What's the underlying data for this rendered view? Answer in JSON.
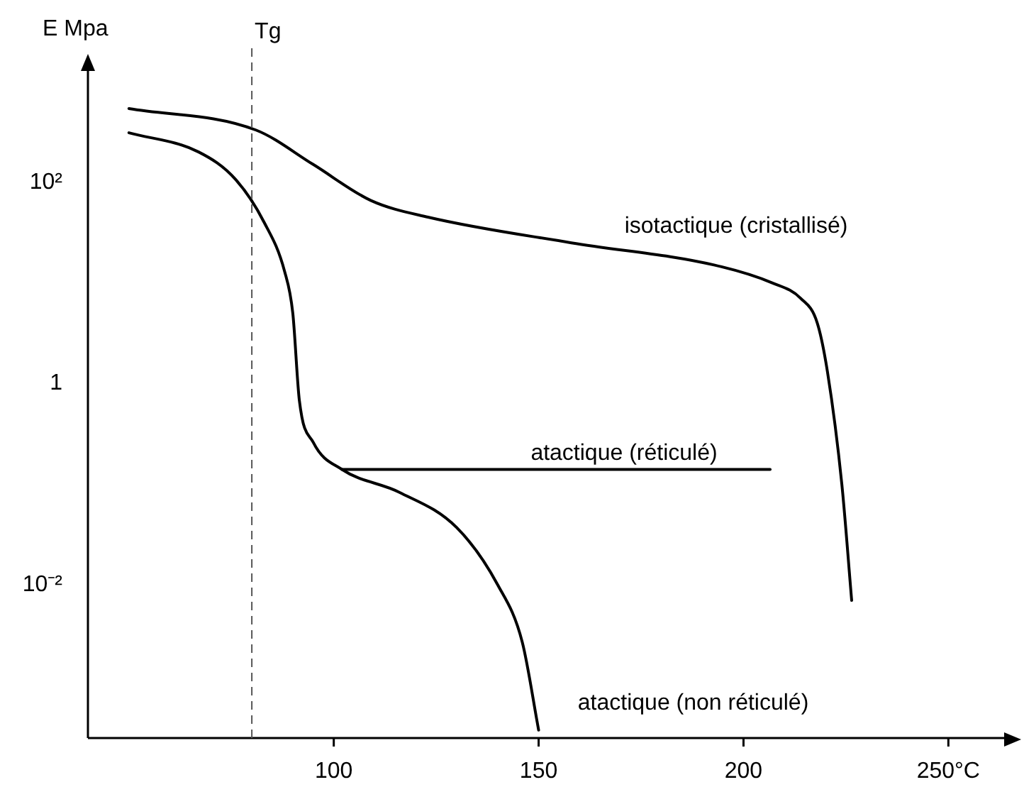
{
  "chart_data": {
    "type": "line",
    "ylabel": "E Mpa",
    "log": "y",
    "xlim": [
      40,
      265
    ],
    "ylim": [
      0.0003,
      1500
    ],
    "xticks": [
      100,
      150,
      200,
      {
        "value": 250,
        "label": "250°C"
      }
    ],
    "yticks": [
      {
        "value": 100,
        "label": "10²"
      },
      1,
      {
        "value": 0.01,
        "label": "10⁻²"
      }
    ],
    "grid": false,
    "legend": false,
    "marker": "none",
    "line_style": "solid",
    "series": [
      {
        "name": "isotactique (cristallisé)",
        "color": "#000000",
        "x": [
          50,
          81,
          95,
          109,
          123,
          158,
          193,
          207,
          214,
          218,
          220.5,
          224,
          226.4
        ],
        "values": [
          540,
          330,
          150,
          66,
          45,
          25,
          15,
          10,
          7,
          4,
          1.3,
          0.1,
          0.007
        ]
      },
      {
        "name": "atactique (non réticulé)",
        "color": "#000000",
        "x": [
          50,
          67,
          76,
          83,
          88,
          90,
          91.6,
          95,
          102,
          116,
          130,
          140,
          146,
          150
        ],
        "values": [
          310,
          200,
          107,
          40,
          13,
          5,
          0.68,
          0.26,
          0.14,
          0.083,
          0.037,
          0.01,
          0.0027,
          0.00036
        ]
      },
      {
        "name": "atactique (réticulé)",
        "color": "#000000",
        "x": [
          102,
          206.5
        ],
        "values": [
          0.14,
          0.14
        ]
      }
    ],
    "ref_lines": [
      {
        "axis": "x",
        "value": 80,
        "label": "Tg",
        "color": "#555555",
        "line_style": "dashed"
      }
    ]
  }
}
